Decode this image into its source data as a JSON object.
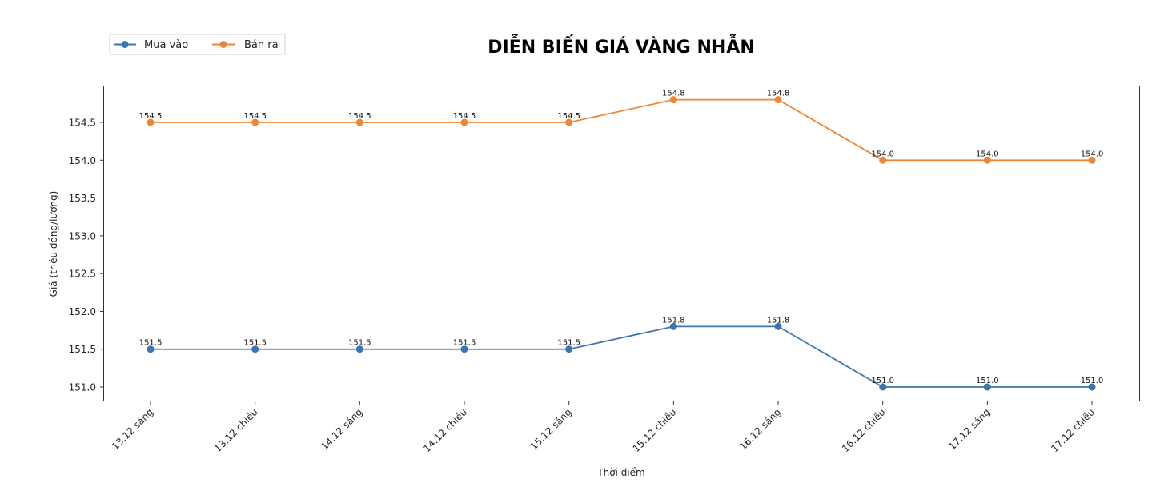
{
  "chart_data": {
    "type": "line",
    "title": "DIỄN BIẾN GIÁ VÀNG NHẪN",
    "xlabel": "Thời điểm",
    "ylabel": "Giá (triệu đồng/lượng)",
    "categories": [
      "13.12 sáng",
      "13.12 chiều",
      "14.12 sáng",
      "14.12 chiều",
      "15.12 sáng",
      "15.12 chiều",
      "16.12 sáng",
      "16.12 chiều",
      "17.12 sáng",
      "17.12 chiều"
    ],
    "series": [
      {
        "name": "Mua vào",
        "color": "#3b75af",
        "values": [
          151.5,
          151.5,
          151.5,
          151.5,
          151.5,
          151.8,
          151.8,
          151.0,
          151.0,
          151.0
        ]
      },
      {
        "name": "Bán ra",
        "color": "#ef8636",
        "values": [
          154.5,
          154.5,
          154.5,
          154.5,
          154.5,
          154.8,
          154.8,
          154.0,
          154.0,
          154.0
        ]
      }
    ],
    "yticks": [
      151.0,
      151.5,
      152.0,
      152.5,
      153.0,
      153.5,
      154.0,
      154.5
    ],
    "ylim": [
      150.81,
      154.99
    ],
    "grid": false,
    "legend_position": "upper left (outside plot, beside title)",
    "data_labels": true,
    "data_label_format": "0.0"
  },
  "legend": {
    "items": [
      {
        "label": "Mua vào",
        "color": "#3b75af"
      },
      {
        "label": "Bán ra",
        "color": "#ef8636"
      }
    ]
  }
}
